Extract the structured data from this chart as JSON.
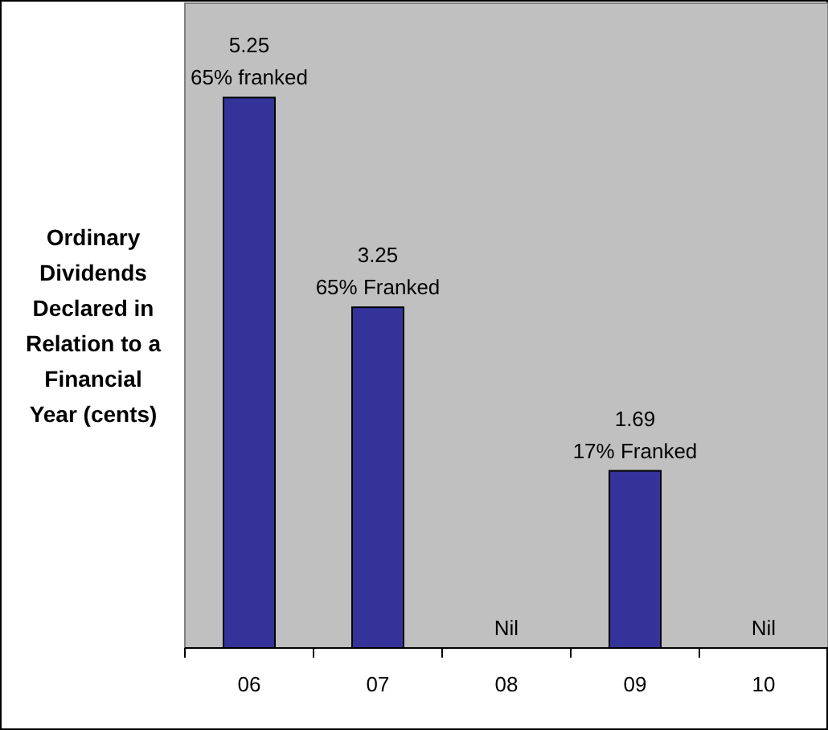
{
  "chart_data": {
    "type": "bar",
    "ylabel": "Ordinary Dividends Declared in Relation to a Financial Year (cents)",
    "categories": [
      "06",
      "07",
      "08",
      "09",
      "10"
    ],
    "values": [
      5.25,
      3.25,
      0,
      1.69,
      0
    ],
    "value_labels": [
      "5.25\n65% franked",
      "3.25\n65% Franked",
      "Nil",
      "1.69\n17% Franked",
      "Nil"
    ],
    "color": "#333399",
    "ylim": [
      0,
      6.15
    ]
  }
}
